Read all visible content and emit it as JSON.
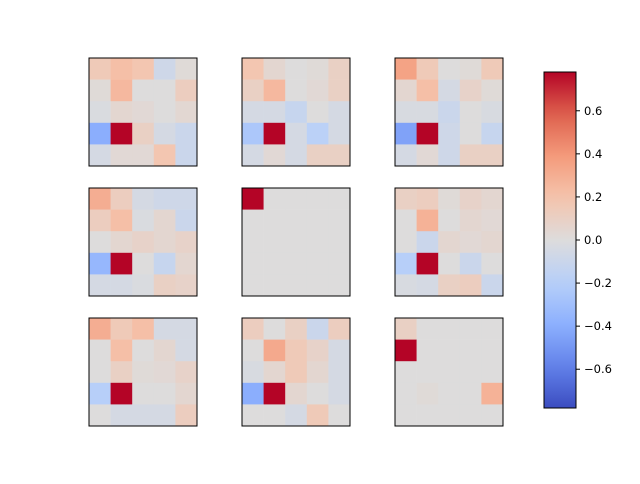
{
  "chart_data": {
    "type": "heatmap",
    "colormap": "coolwarm",
    "title": "",
    "xlabel": "",
    "ylabel": "",
    "vmin": -0.78,
    "vmax": 0.78,
    "grid": false,
    "layout": "3x3 grid of 5x5 heatmaps, shared colorbar on the right",
    "colorbar": {
      "ticks": [
        0.6,
        0.4,
        0.2,
        0.0,
        -0.2,
        -0.4,
        -0.6
      ],
      "tick_labels": [
        "0.6",
        "0.4",
        "0.2",
        "0.0",
        "−0.2",
        "−0.4",
        "−0.6"
      ]
    },
    "panels": [
      {
        "values": [
          [
            0.15,
            0.22,
            0.18,
            -0.08,
            0.02
          ],
          [
            0.02,
            0.25,
            0.0,
            0.0,
            0.12
          ],
          [
            -0.02,
            0.05,
            0.03,
            0.0,
            0.04
          ],
          [
            -0.4,
            0.78,
            0.1,
            -0.05,
            -0.1
          ],
          [
            -0.05,
            0.03,
            0.03,
            0.18,
            -0.1
          ]
        ]
      },
      {
        "values": [
          [
            0.18,
            0.05,
            0.0,
            0.02,
            0.1
          ],
          [
            0.1,
            0.25,
            0.0,
            0.03,
            0.1
          ],
          [
            -0.05,
            -0.05,
            -0.12,
            0.0,
            -0.05
          ],
          [
            -0.25,
            0.78,
            -0.05,
            -0.18,
            -0.05
          ],
          [
            -0.05,
            0.03,
            -0.05,
            0.1,
            0.1
          ]
        ]
      },
      {
        "values": [
          [
            0.35,
            0.15,
            0.0,
            0.02,
            0.15
          ],
          [
            0.05,
            0.22,
            -0.05,
            0.08,
            0.02
          ],
          [
            -0.03,
            -0.03,
            -0.1,
            0.0,
            -0.03
          ],
          [
            -0.45,
            0.78,
            -0.08,
            0.0,
            -0.12
          ],
          [
            -0.05,
            0.03,
            -0.08,
            0.1,
            0.1
          ]
        ]
      },
      {
        "values": [
          [
            0.3,
            0.12,
            -0.05,
            -0.08,
            -0.08
          ],
          [
            0.12,
            0.22,
            -0.02,
            0.05,
            -0.1
          ],
          [
            0.0,
            0.05,
            0.08,
            0.05,
            0.08
          ],
          [
            -0.35,
            0.78,
            0.0,
            -0.12,
            0.05
          ],
          [
            -0.05,
            -0.05,
            -0.02,
            0.1,
            0.08
          ]
        ]
      },
      {
        "values": [
          [
            0.78,
            0.0,
            0.0,
            0.0,
            0.0
          ],
          [
            0.0,
            0.0,
            0.0,
            0.0,
            0.0
          ],
          [
            0.0,
            0.0,
            0.0,
            0.0,
            0.0
          ],
          [
            0.0,
            0.0,
            0.0,
            0.0,
            0.0
          ],
          [
            0.0,
            0.0,
            0.0,
            0.0,
            0.0
          ]
        ]
      },
      {
        "values": [
          [
            0.1,
            0.12,
            0.02,
            0.08,
            0.05
          ],
          [
            0.0,
            0.28,
            0.0,
            0.05,
            0.03
          ],
          [
            0.0,
            -0.1,
            0.05,
            0.03,
            0.05
          ],
          [
            -0.2,
            0.78,
            0.0,
            -0.1,
            0.0
          ],
          [
            -0.03,
            -0.05,
            0.1,
            0.12,
            -0.1
          ]
        ]
      },
      {
        "values": [
          [
            0.3,
            0.15,
            0.22,
            -0.05,
            -0.05
          ],
          [
            0.0,
            0.22,
            0.0,
            0.05,
            -0.05
          ],
          [
            0.0,
            0.1,
            0.02,
            0.03,
            0.08
          ],
          [
            -0.2,
            0.78,
            0.0,
            0.0,
            0.05
          ],
          [
            0.0,
            -0.05,
            -0.05,
            -0.05,
            0.12
          ]
        ]
      },
      {
        "values": [
          [
            0.12,
            0.0,
            0.1,
            -0.1,
            0.12
          ],
          [
            0.0,
            0.32,
            0.15,
            0.08,
            -0.05
          ],
          [
            -0.03,
            0.05,
            0.15,
            0.05,
            -0.05
          ],
          [
            -0.4,
            0.78,
            0.05,
            0.0,
            -0.05
          ],
          [
            0.0,
            0.0,
            -0.05,
            0.15,
            0.0
          ]
        ]
      },
      {
        "values": [
          [
            0.1,
            0.0,
            0.0,
            0.0,
            0.0
          ],
          [
            0.78,
            0.0,
            0.0,
            0.0,
            0.0
          ],
          [
            0.0,
            0.0,
            0.0,
            0.0,
            0.0
          ],
          [
            0.0,
            0.02,
            0.0,
            0.0,
            0.28
          ],
          [
            0.0,
            0.0,
            0.0,
            0.0,
            0.0
          ]
        ]
      }
    ]
  }
}
